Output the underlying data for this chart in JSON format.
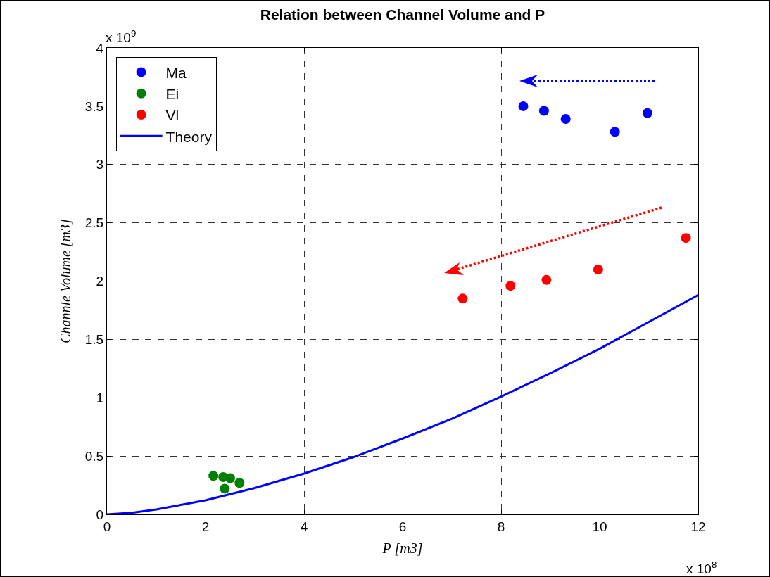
{
  "chart_data": {
    "type": "scatter",
    "title": "Relation between Channel Volume and P",
    "xlabel": "P [m3]",
    "ylabel": "Channle Volume [m3]",
    "annotations": [
      "x 10$^{9}$",
      "x 10$^{8}$"
    ],
    "xlim": [
      0,
      12
    ],
    "xticks": [
      0,
      2,
      4,
      6,
      8,
      10,
      12
    ],
    "ylim": [
      0,
      4
    ],
    "yticks": [
      0,
      0.5,
      1,
      1.5,
      2,
      2.5,
      3,
      3.5,
      4
    ],
    "grid": true,
    "legend": "top left",
    "marker": "circle",
    "series": [
      {
        "name": "Ma",
        "color": "#0000ff",
        "x": [
          8.45,
          8.87,
          9.31,
          10.31,
          10.97
        ],
        "values": [
          3.5,
          3.46,
          3.39,
          3.28,
          3.44
        ]
      },
      {
        "name": "Ei",
        "color": "#007f00",
        "x": [
          2.16,
          2.36,
          2.5,
          2.69,
          2.39
        ],
        "values": [
          0.33,
          0.32,
          0.31,
          0.27,
          0.22
        ]
      },
      {
        "name": "Vl",
        "color": "#ff0000",
        "x": [
          7.22,
          8.19,
          8.92,
          9.97,
          11.75
        ],
        "values": [
          1.85,
          1.96,
          2.01,
          2.1,
          2.37
        ]
      },
      {
        "name": "Theory",
        "type": "line",
        "marker": "none",
        "line_style": "solid",
        "color": "#0000ff",
        "x": [
          0,
          0.5,
          1,
          2,
          3,
          4,
          5,
          6,
          7,
          8,
          9,
          10,
          11,
          12
        ],
        "values": [
          0,
          0.014,
          0.042,
          0.121,
          0.226,
          0.35,
          0.49,
          0.65,
          0.82,
          1.01,
          1.21,
          1.42,
          1.65,
          1.88
        ]
      }
    ]
  }
}
